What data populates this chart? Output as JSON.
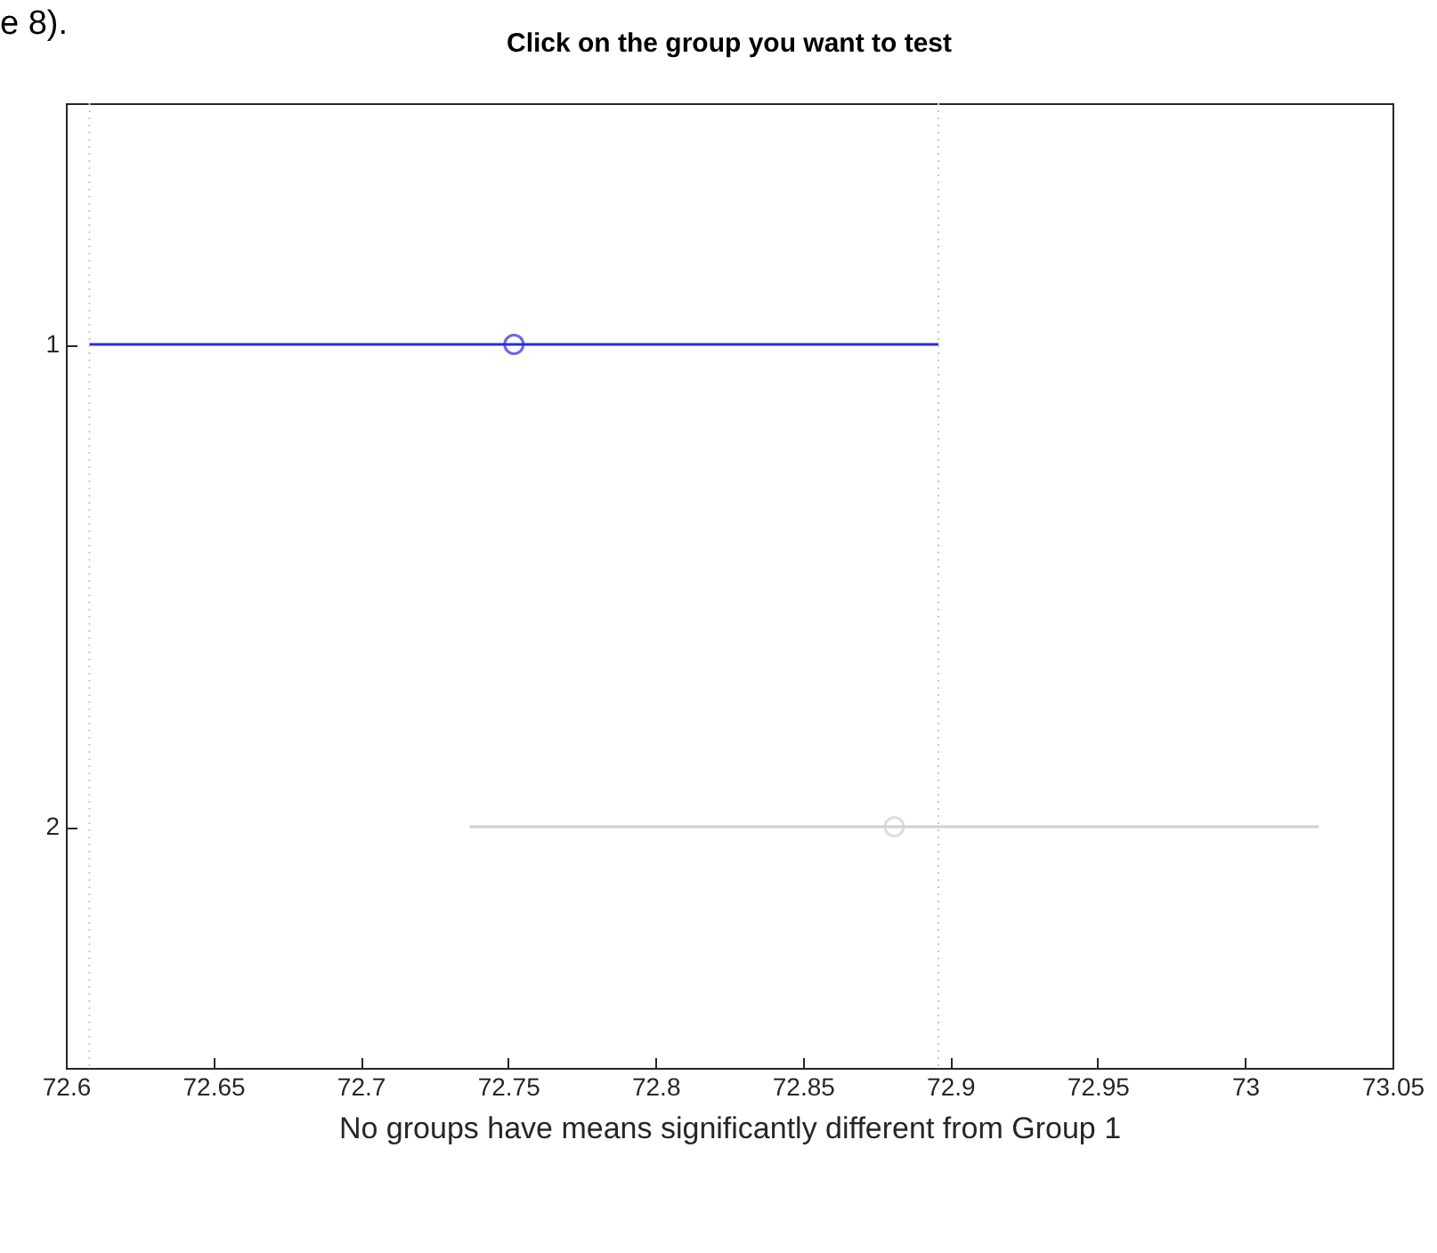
{
  "chart_data": {
    "type": "scatter",
    "orientation": "horizontal",
    "title": "Click on the group you want to test",
    "xlabel": "No groups have means significantly different from Group 1",
    "annotations": [
      "e 8)."
    ],
    "categories": [
      "1",
      "2"
    ],
    "values": [
      72.752,
      72.881
    ],
    "errors": [
      [
        72.608,
        72.896
      ],
      [
        72.737,
        73.025
      ]
    ],
    "colors": [
      "#2b2bd6",
      "#cfcfcf"
    ],
    "marker": "circle",
    "xlim": [
      72.6,
      73.05
    ],
    "xticks": [
      72.6,
      72.65,
      72.7,
      72.75,
      72.8,
      72.85,
      72.9,
      72.95,
      73,
      73.05
    ],
    "ref_lines": [
      {
        "axis": "x",
        "value": 72.608,
        "color": "#c8c8c8",
        "line_style": "dotted"
      },
      {
        "axis": "x",
        "value": 72.896,
        "color": "#c8c8c8",
        "line_style": "dotted"
      }
    ],
    "grid": false
  }
}
